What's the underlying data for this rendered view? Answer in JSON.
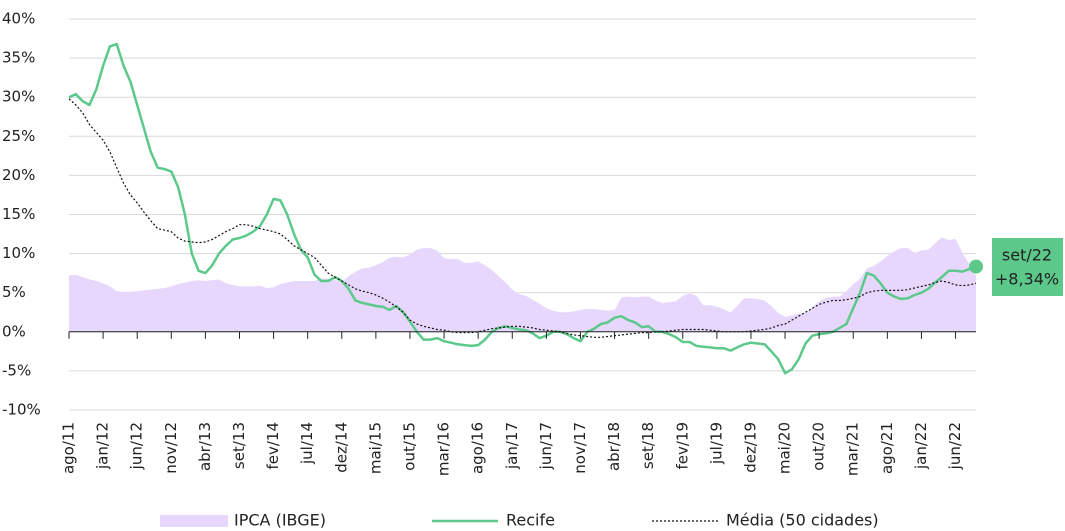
{
  "chart_data": {
    "type": "line",
    "categories": [
      "ago/11",
      null,
      null,
      null,
      null,
      "jan/12",
      null,
      null,
      null,
      null,
      "jun/12",
      null,
      null,
      null,
      null,
      "nov/12",
      null,
      null,
      null,
      null,
      "abr/13",
      null,
      null,
      null,
      null,
      "set/13",
      null,
      null,
      null,
      null,
      "fev/14",
      null,
      null,
      null,
      null,
      "jul/14",
      null,
      null,
      null,
      null,
      "dez/14",
      null,
      null,
      null,
      null,
      "mai/15",
      null,
      null,
      null,
      null,
      "out/15",
      null,
      null,
      null,
      null,
      "mar/16",
      null,
      null,
      null,
      null,
      "ago/16",
      null,
      null,
      null,
      null,
      "jan/17",
      null,
      null,
      null,
      null,
      "jun/17",
      null,
      null,
      null,
      null,
      "nov/17",
      null,
      null,
      null,
      null,
      "abr/18",
      null,
      null,
      null,
      null,
      "set/18",
      null,
      null,
      null,
      null,
      "fev/19",
      null,
      null,
      null,
      null,
      "jul/19",
      null,
      null,
      null,
      null,
      "dez/19",
      null,
      null,
      null,
      null,
      "mai/20",
      null,
      null,
      null,
      null,
      "out/20",
      null,
      null,
      null,
      null,
      "mar/21",
      null,
      null,
      null,
      null,
      "ago/21",
      null,
      null,
      null,
      null,
      "jan/22",
      null,
      null,
      null,
      null,
      "jun/22",
      null,
      null,
      null
    ],
    "series": [
      {
        "name": "IPCA (IBGE)",
        "style": "area",
        "color": "#e7d7fc",
        "values": [
          7.2,
          7.3,
          7,
          6.7,
          6.5,
          6.2,
          5.8,
          5.2,
          5.1,
          5.1,
          5.2,
          5.3,
          5.4,
          5.5,
          5.6,
          5.8,
          6.1,
          6.3,
          6.5,
          6.6,
          6.5,
          6.6,
          6.7,
          6.2,
          6,
          5.8,
          5.8,
          5.8,
          5.9,
          5.6,
          5.7,
          6.1,
          6.3,
          6.5,
          6.5,
          6.5,
          6.5,
          6.8,
          6.8,
          6.6,
          6.4,
          7.1,
          7.7,
          8.1,
          8.2,
          8.5,
          8.9,
          9.5,
          9.6,
          9.5,
          9.9,
          10.5,
          10.7,
          10.7,
          10.4,
          9.4,
          9.3,
          9.3,
          8.8,
          8.8,
          9,
          8.5,
          7.9,
          7.1,
          6.3,
          5.4,
          4.8,
          4.6,
          4.1,
          3.6,
          3,
          2.7,
          2.5,
          2.5,
          2.6,
          2.8,
          2.9,
          2.9,
          2.8,
          2.7,
          2.8,
          4.4,
          4.5,
          4.4,
          4.5,
          4.5,
          4,
          3.7,
          3.8,
          3.9,
          4.6,
          4.9,
          4.6,
          3.4,
          3.4,
          3.2,
          2.9,
          2.5,
          3.3,
          4.3,
          4.3,
          4.2,
          4,
          3.3,
          2.4,
          1.9,
          2.1,
          2.3,
          2.4,
          3.1,
          3.9,
          4.3,
          4.5,
          4.5,
          5.2,
          6.1,
          6.8,
          8.1,
          8.4,
          9,
          9.7,
          10.3,
          10.7,
          10.7,
          10.1,
          10.4,
          10.5,
          11.3,
          12.1,
          11.7,
          11.9,
          10.1,
          8.7,
          7.2
        ]
      },
      {
        "name": "Recife",
        "style": "line",
        "color": "#5cc98b",
        "values": [
          30,
          30.4,
          29.5,
          29,
          31,
          34,
          36.5,
          36.8,
          34,
          32,
          29,
          26,
          23,
          21,
          20.8,
          20.5,
          18.5,
          15,
          10,
          7.8,
          7.5,
          8.5,
          10,
          11,
          11.8,
          12,
          12.3,
          12.8,
          13.5,
          15,
          17,
          16.8,
          15,
          12.5,
          10.5,
          9.5,
          7.3,
          6.5,
          6.5,
          7,
          6.5,
          5.5,
          4,
          3.7,
          3.5,
          3.3,
          3.2,
          2.8,
          3.3,
          2.5,
          1.3,
          0,
          -1,
          -1,
          -0.8,
          -1.2,
          -1.4,
          -1.6,
          -1.7,
          -1.8,
          -1.7,
          -1,
          0,
          0.5,
          0.7,
          0.5,
          0.3,
          0.2,
          -0.2,
          -0.8,
          -0.5,
          0,
          0,
          -0.3,
          -0.8,
          -1.2,
          0,
          0.4,
          1,
          1.2,
          1.8,
          2,
          1.5,
          1.2,
          0.6,
          0.7,
          0,
          0,
          -0.3,
          -0.7,
          -1.3,
          -1.3,
          -1.8,
          -1.9,
          -2,
          -2.1,
          -2.1,
          -2.4,
          -2,
          -1.6,
          -1.4,
          -1.5,
          -1.6,
          -2.5,
          -3.5,
          -5.3,
          -4.8,
          -3.5,
          -1.5,
          -0.5,
          -0.3,
          -0.2,
          0,
          0.5,
          1,
          3,
          5,
          7.5,
          7.2,
          6.2,
          5,
          4.5,
          4.2,
          4.3,
          4.7,
          5,
          5.5,
          6.3,
          7,
          7.8,
          7.8,
          7.7,
          8,
          8.34
        ]
      },
      {
        "name": "Média (50 cidades)",
        "style": "dotted",
        "color": "#111111",
        "values": [
          29.8,
          29,
          28,
          26.5,
          25.5,
          24.5,
          23,
          21,
          19,
          17.5,
          16.5,
          15.3,
          14.2,
          13.2,
          13,
          12.8,
          12,
          11.6,
          11.5,
          11.4,
          11.5,
          11.8,
          12.3,
          12.8,
          13.2,
          13.7,
          13.7,
          13.5,
          13.2,
          13,
          12.8,
          12.5,
          11.8,
          11,
          10.5,
          10,
          9.5,
          8.5,
          7.5,
          7,
          6.5,
          6,
          5.5,
          5.2,
          5,
          4.7,
          4.3,
          3.8,
          3.2,
          2.5,
          1.5,
          1,
          0.7,
          0.5,
          0.3,
          0.2,
          0,
          -0.1,
          -0.1,
          -0.1,
          0,
          0.2,
          0.4,
          0.5,
          0.6,
          0.7,
          0.7,
          0.6,
          0.5,
          0.3,
          0.2,
          0.1,
          0,
          -0.2,
          -0.4,
          -0.5,
          -0.6,
          -0.7,
          -0.7,
          -0.6,
          -0.5,
          -0.4,
          -0.3,
          -0.2,
          -0.1,
          -0.1,
          0,
          0,
          0.1,
          0.2,
          0.3,
          0.3,
          0.3,
          0.3,
          0.2,
          0.1,
          0,
          0,
          0,
          0,
          0.1,
          0.2,
          0.3,
          0.5,
          0.8,
          1,
          1.5,
          2,
          2.5,
          3,
          3.5,
          3.8,
          4,
          4,
          4.1,
          4.3,
          4.5,
          5,
          5.2,
          5.3,
          5.3,
          5.3,
          5.3,
          5.4,
          5.6,
          5.8,
          6,
          6.3,
          6.5,
          6.3,
          6,
          5.9,
          6,
          6.2
        ]
      }
    ],
    "annotation": {
      "date": "set/22",
      "label": "+8,34%",
      "color": "#5cc98b"
    },
    "ylim": [
      -10,
      40
    ],
    "yticks": [
      {
        "value": -10,
        "label": "-10%"
      },
      {
        "value": -5,
        "label": "-5%"
      },
      {
        "value": 0,
        "label": "0%"
      },
      {
        "value": 5,
        "label": "5%"
      },
      {
        "value": 10,
        "label": "10%"
      },
      {
        "value": 15,
        "label": "15%"
      },
      {
        "value": 20,
        "label": "20%"
      },
      {
        "value": 25,
        "label": "25%"
      },
      {
        "value": 30,
        "label": "30%"
      },
      {
        "value": 35,
        "label": "35%"
      },
      {
        "value": 40,
        "label": "40%"
      }
    ],
    "grid": true
  }
}
